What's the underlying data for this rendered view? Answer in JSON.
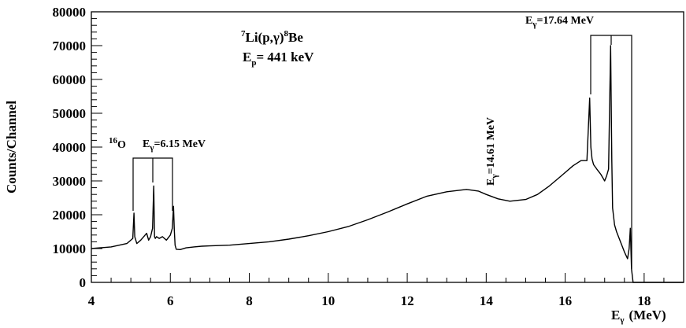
{
  "chart_data": {
    "type": "line",
    "title": "",
    "xlabel": "E",
    "xlabel_sub": "γ",
    "xlabel_unit": "(MeV)",
    "ylabel": "Counts/Channel",
    "xlim": [
      4,
      19
    ],
    "ylim": [
      0,
      80000
    ],
    "x_ticks": [
      4,
      6,
      8,
      10,
      12,
      14,
      16,
      18
    ],
    "y_ticks": [
      0,
      10000,
      20000,
      30000,
      40000,
      50000,
      60000,
      70000,
      80000
    ],
    "x_tick_labels": [
      "4",
      "6",
      "8",
      "10",
      "12",
      "14",
      "16",
      "18"
    ],
    "y_tick_labels": [
      "0",
      "10000",
      "20000",
      "30000",
      "40000",
      "50000",
      "60000",
      "70000",
      "80000"
    ],
    "grid": false,
    "legend": "none",
    "line_color": "#000000",
    "series": [
      {
        "x": [
          4.0,
          4.5,
          4.9,
          5.05,
          5.08,
          5.1,
          5.15,
          5.25,
          5.4,
          5.45,
          5.5,
          5.55,
          5.58,
          5.6,
          5.62,
          5.65,
          5.72,
          5.8,
          5.9,
          6.0,
          6.05,
          6.08,
          6.1,
          6.12,
          6.15,
          6.25,
          6.4,
          6.6,
          6.8,
          7.0,
          7.5,
          8.0,
          8.5,
          9.0,
          9.5,
          10.0,
          10.5,
          11.0,
          11.5,
          12.0,
          12.5,
          13.0,
          13.5,
          13.8,
          14.0,
          14.3,
          14.6,
          15.0,
          15.3,
          15.6,
          15.9,
          16.2,
          16.4,
          16.55,
          16.62,
          16.65,
          16.68,
          16.72,
          16.8,
          16.9,
          17.0,
          17.05,
          17.1,
          17.15,
          17.18,
          17.2,
          17.25,
          17.3,
          17.4,
          17.5,
          17.58,
          17.62,
          17.65,
          17.68,
          17.72,
          18.0,
          19.0
        ],
        "y": [
          10000,
          10500,
          11500,
          13000,
          20500,
          13500,
          11500,
          12500,
          14500,
          12500,
          13500,
          16000,
          28500,
          13500,
          13000,
          13500,
          13000,
          13500,
          12500,
          14000,
          16000,
          22500,
          15500,
          11000,
          9800,
          9700,
          10200,
          10500,
          10700,
          10800,
          11000,
          11500,
          12000,
          12800,
          13800,
          15000,
          16500,
          18500,
          20800,
          23200,
          25500,
          26800,
          27500,
          27000,
          26000,
          24700,
          24000,
          24500,
          26000,
          28500,
          31500,
          34500,
          36000,
          36000,
          54500,
          40000,
          36500,
          34800,
          33500,
          32000,
          30000,
          31500,
          33500,
          70000,
          36000,
          22000,
          17000,
          15000,
          12000,
          9000,
          7000,
          10000,
          16000,
          4000,
          0,
          0,
          0
        ]
      }
    ],
    "annotations": {
      "reaction": {
        "pre": "7",
        "a": "Li(p,γ)",
        "sup2": "8",
        "b": "Be"
      },
      "energy": {
        "e": "E",
        "sub": "p",
        "rest": "= 441 keV"
      },
      "oxygen": {
        "sup": "16",
        "main": "O"
      },
      "peak1": {
        "e": "E",
        "sub": "γ",
        "rest": "=6.15 MeV"
      },
      "peak2": {
        "e": "E",
        "sub": "γ",
        "rest": "=14.61 MeV"
      },
      "peak3": {
        "e": "E",
        "sub": "γ",
        "rest": "=17.64 MeV"
      }
    }
  }
}
